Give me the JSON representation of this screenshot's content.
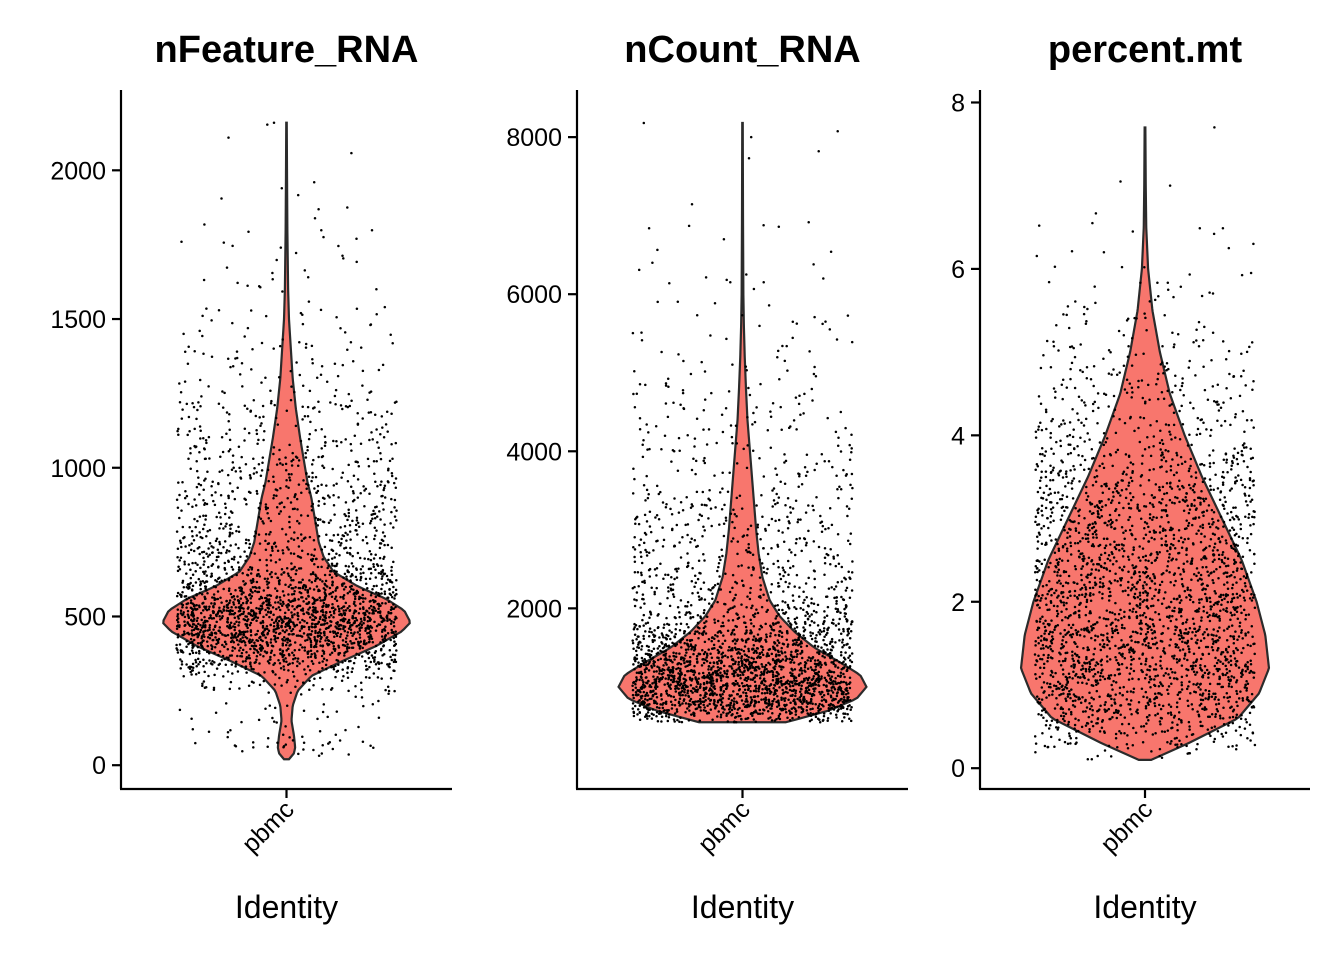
{
  "colors": {
    "violin_fill": "#F8766D",
    "violin_stroke": "#2b2b2b",
    "point": "#000000",
    "axis": "#000000"
  },
  "chart_data": [
    {
      "type": "violin",
      "title": "nFeature_RNA",
      "xlabel": "Identity",
      "ylabel": "",
      "categories": [
        "pbmc"
      ],
      "ylim": [
        -80,
        2270
      ],
      "yticks": [
        0,
        500,
        1000,
        1500,
        2000
      ],
      "ytick_labels": [
        "0",
        "500",
        "1000",
        "1500",
        "2000"
      ],
      "grid": false,
      "legend": "none",
      "data_min": 20,
      "data_max": 2160,
      "density": [
        [
          20,
          0.02
        ],
        [
          40,
          0.06
        ],
        [
          60,
          0.07
        ],
        [
          100,
          0.06
        ],
        [
          150,
          0.04
        ],
        [
          200,
          0.05
        ],
        [
          250,
          0.09
        ],
        [
          300,
          0.2
        ],
        [
          350,
          0.45
        ],
        [
          400,
          0.72
        ],
        [
          450,
          0.93
        ],
        [
          480,
          1.0
        ],
        [
          520,
          0.95
        ],
        [
          560,
          0.8
        ],
        [
          600,
          0.58
        ],
        [
          650,
          0.38
        ],
        [
          700,
          0.3
        ],
        [
          750,
          0.26
        ],
        [
          800,
          0.24
        ],
        [
          850,
          0.22
        ],
        [
          900,
          0.2
        ],
        [
          950,
          0.17
        ],
        [
          1000,
          0.15
        ],
        [
          1100,
          0.11
        ],
        [
          1200,
          0.075
        ],
        [
          1300,
          0.05
        ],
        [
          1400,
          0.035
        ],
        [
          1500,
          0.02
        ],
        [
          1600,
          0.013
        ],
        [
          1800,
          0.007
        ],
        [
          2000,
          0.004
        ],
        [
          2160,
          0.002
        ]
      ],
      "n_points": 2700,
      "outliers": [
        2160,
        2110,
        1960,
        1940,
        1770,
        1760,
        1740,
        1610,
        1600,
        1540,
        1520,
        1480,
        1460,
        1450
      ]
    },
    {
      "type": "violin",
      "title": "nCount_RNA",
      "xlabel": "Identity",
      "ylabel": "",
      "categories": [
        "pbmc"
      ],
      "ylim": [
        -300,
        8600
      ],
      "yticks": [
        2000,
        4000,
        6000,
        8000
      ],
      "ytick_labels": [
        "2000",
        "4000",
        "6000",
        "8000"
      ],
      "grid": false,
      "legend": "none",
      "data_min": 550,
      "data_max": 8180,
      "density": [
        [
          550,
          0.35
        ],
        [
          700,
          0.7
        ],
        [
          850,
          0.92
        ],
        [
          1000,
          1.0
        ],
        [
          1150,
          0.95
        ],
        [
          1300,
          0.8
        ],
        [
          1500,
          0.58
        ],
        [
          1700,
          0.42
        ],
        [
          1900,
          0.3
        ],
        [
          2100,
          0.22
        ],
        [
          2400,
          0.16
        ],
        [
          2700,
          0.13
        ],
        [
          3000,
          0.11
        ],
        [
          3300,
          0.095
        ],
        [
          3600,
          0.08
        ],
        [
          4000,
          0.06
        ],
        [
          4400,
          0.04
        ],
        [
          4800,
          0.028
        ],
        [
          5200,
          0.018
        ],
        [
          5600,
          0.011
        ],
        [
          6000,
          0.007
        ],
        [
          7000,
          0.004
        ],
        [
          8180,
          0.002
        ]
      ],
      "n_points": 2700,
      "outliers": [
        8180,
        8000,
        7820,
        6870,
        6840,
        6700,
        6380,
        6310,
        6200,
        5650
      ]
    },
    {
      "type": "violin",
      "title": "percent.mt",
      "xlabel": "Identity",
      "ylabel": "",
      "categories": [
        "pbmc"
      ],
      "ylim": [
        -0.25,
        8.15
      ],
      "yticks": [
        0,
        2,
        4,
        6,
        8
      ],
      "ytick_labels": [
        "0",
        "2",
        "4",
        "6",
        "8"
      ],
      "grid": false,
      "legend": "none",
      "data_min": 0.1,
      "data_max": 7.7,
      "density": [
        [
          0.1,
          0.05
        ],
        [
          0.3,
          0.35
        ],
        [
          0.6,
          0.75
        ],
        [
          0.9,
          0.92
        ],
        [
          1.2,
          1.0
        ],
        [
          1.6,
          0.97
        ],
        [
          2.0,
          0.9
        ],
        [
          2.5,
          0.78
        ],
        [
          3.0,
          0.62
        ],
        [
          3.5,
          0.46
        ],
        [
          4.0,
          0.32
        ],
        [
          4.5,
          0.2
        ],
        [
          5.0,
          0.12
        ],
        [
          5.5,
          0.06
        ],
        [
          6.0,
          0.025
        ],
        [
          6.5,
          0.01
        ],
        [
          7.0,
          0.006
        ],
        [
          7.7,
          0.003
        ]
      ],
      "n_points": 2700,
      "outliers": [
        7.7,
        7.05,
        6.55,
        6.52,
        6.45,
        6.3,
        6.25,
        6.2,
        6.02
      ]
    }
  ]
}
